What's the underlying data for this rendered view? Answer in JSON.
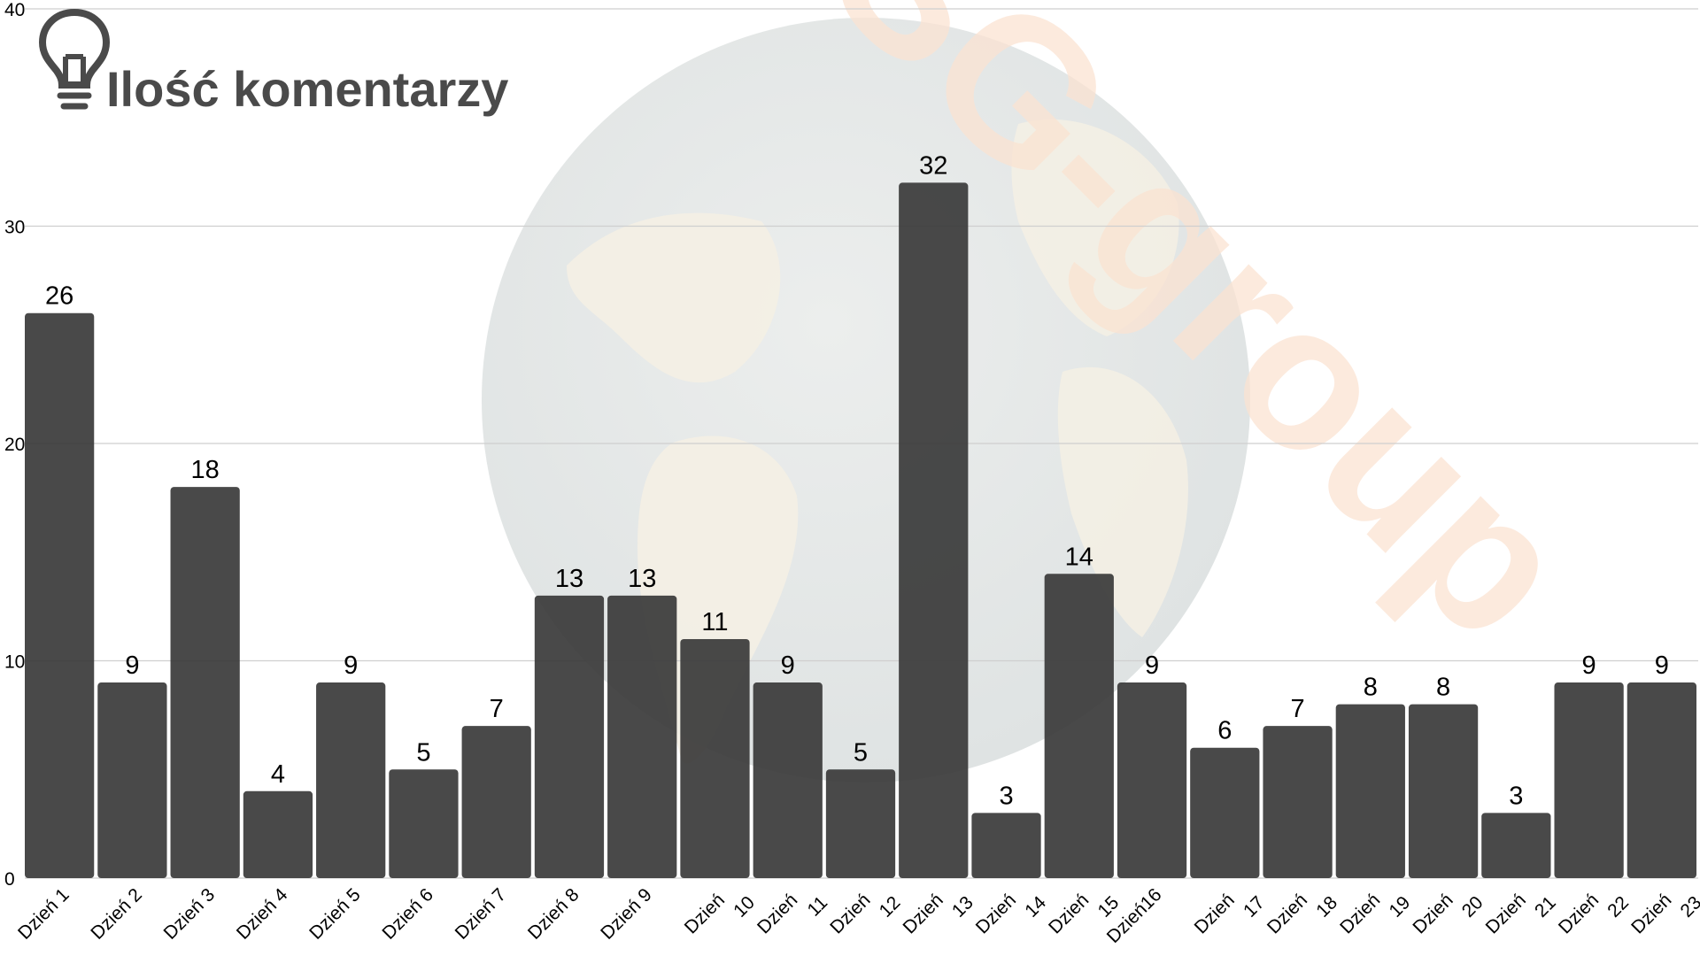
{
  "chart_data": {
    "type": "bar",
    "title": "Ilość komentarzy",
    "categories": [
      "Dzień 1",
      "Dzień 2",
      "Dzień 3",
      "Dzień 4",
      "Dzień 5",
      "Dzień 6",
      "Dzień 7",
      "Dzień 8",
      "Dzień 9",
      "Dzień 10",
      "Dzień 11",
      "Dzień 12",
      "Dzień 13",
      "Dzień 14",
      "Dzień 15",
      "Dzień16",
      "Dzień 17",
      "Dzień 18",
      "Dzień 19",
      "Dzień 20",
      "Dzień 21",
      "Dzień 22",
      "Dzień 23"
    ],
    "values": [
      26,
      9,
      18,
      4,
      9,
      5,
      7,
      13,
      13,
      11,
      9,
      5,
      32,
      3,
      14,
      9,
      6,
      7,
      8,
      8,
      3,
      9,
      9
    ],
    "ylim": [
      0,
      40
    ],
    "yticks": [
      0,
      10,
      20,
      30,
      40
    ],
    "grid": true,
    "bar_color": "#3a3a3a",
    "title_color": "#4a4a4a",
    "title_icon": "lightbulb-icon",
    "watermark": {
      "text": "SG-group",
      "color": "#fbe3d2",
      "background_icon": "globe-icon"
    }
  }
}
